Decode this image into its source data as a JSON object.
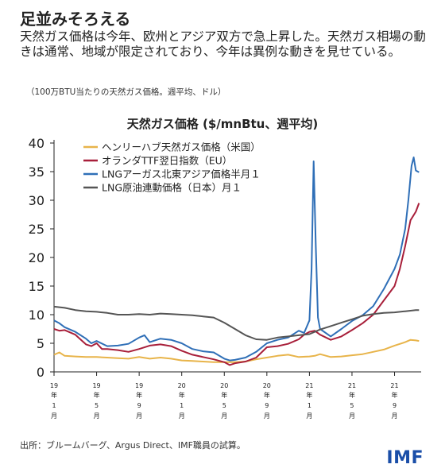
{
  "header": {
    "title": "足並みそろえる",
    "lead": "天然ガス価格は今年、欧州とアジア双方で急上昇した。天然ガス相場の動きは通常、地域が限定されており、今年は異例な動きを見せている。",
    "unit_note": "（100万BTU当たりの天然ガス価格。週平均、ドル）"
  },
  "footer": {
    "source": "出所：ブルームバーグ、Argus Direct、IMF職員の試算。",
    "brand": "IMF"
  },
  "chart_data": {
    "type": "line",
    "title": "天然ガス価格 ($/mnBtu、週平均)",
    "ylim": [
      0,
      40
    ],
    "yticks": [
      0,
      5,
      10,
      15,
      20,
      25,
      30,
      35,
      40
    ],
    "xlim": [
      0,
      34.5
    ],
    "xticks": [
      {
        "x": 0,
        "lines": [
          "19",
          "年",
          "1",
          "月"
        ]
      },
      {
        "x": 4,
        "lines": [
          "19",
          "年",
          "5",
          "月"
        ]
      },
      {
        "x": 8,
        "lines": [
          "19",
          "年",
          "9",
          "月"
        ]
      },
      {
        "x": 12,
        "lines": [
          "20",
          "年",
          "1",
          "月"
        ]
      },
      {
        "x": 16,
        "lines": [
          "20",
          "年",
          "5",
          "月"
        ]
      },
      {
        "x": 20,
        "lines": [
          "20",
          "年",
          "9",
          "月"
        ]
      },
      {
        "x": 24,
        "lines": [
          "21",
          "年",
          "1",
          "月"
        ]
      },
      {
        "x": 28,
        "lines": [
          "21",
          "年",
          "5",
          "月"
        ]
      },
      {
        "x": 32,
        "lines": [
          "21",
          "年",
          "9",
          "月"
        ]
      }
    ],
    "grid": false,
    "legend": "top-left",
    "series": [
      {
        "name": "ヘンリーハブ天然ガス価格（米国）",
        "color": "#e8b44a",
        "points": [
          [
            0,
            3.0
          ],
          [
            0.5,
            3.4
          ],
          [
            1,
            2.8
          ],
          [
            2,
            2.7
          ],
          [
            3,
            2.6
          ],
          [
            4,
            2.6
          ],
          [
            5,
            2.5
          ],
          [
            6,
            2.4
          ],
          [
            7,
            2.3
          ],
          [
            8,
            2.6
          ],
          [
            9,
            2.3
          ],
          [
            10,
            2.5
          ],
          [
            11,
            2.3
          ],
          [
            12,
            2.0
          ],
          [
            13,
            1.9
          ],
          [
            14,
            1.8
          ],
          [
            15,
            1.7
          ],
          [
            16,
            1.7
          ],
          [
            17,
            1.7
          ],
          [
            18,
            1.8
          ],
          [
            19,
            2.2
          ],
          [
            20,
            2.5
          ],
          [
            21,
            2.8
          ],
          [
            22,
            3.0
          ],
          [
            23,
            2.6
          ],
          [
            24,
            2.7
          ],
          [
            24.5,
            2.8
          ],
          [
            25,
            3.1
          ],
          [
            26,
            2.6
          ],
          [
            27,
            2.7
          ],
          [
            28,
            2.9
          ],
          [
            29,
            3.1
          ],
          [
            30,
            3.5
          ],
          [
            31,
            3.9
          ],
          [
            32,
            4.6
          ],
          [
            33,
            5.2
          ],
          [
            33.5,
            5.6
          ],
          [
            34,
            5.5
          ],
          [
            34.3,
            5.4
          ]
        ]
      },
      {
        "name": "オランダTTF翌日指数（EU）",
        "color": "#a81f3a",
        "points": [
          [
            0,
            7.5
          ],
          [
            0.5,
            7.2
          ],
          [
            1,
            7.3
          ],
          [
            2,
            6.5
          ],
          [
            3,
            4.8
          ],
          [
            3.5,
            4.5
          ],
          [
            4,
            5.0
          ],
          [
            4.5,
            4.0
          ],
          [
            5,
            4.0
          ],
          [
            6,
            3.8
          ],
          [
            7,
            3.5
          ],
          [
            8,
            4.0
          ],
          [
            9,
            4.6
          ],
          [
            10,
            4.8
          ],
          [
            11,
            4.5
          ],
          [
            12,
            3.7
          ],
          [
            13,
            3.0
          ],
          [
            14,
            2.6
          ],
          [
            15,
            2.2
          ],
          [
            16,
            1.7
          ],
          [
            16.5,
            1.2
          ],
          [
            17,
            1.5
          ],
          [
            18,
            1.8
          ],
          [
            19,
            2.5
          ],
          [
            20,
            4.3
          ],
          [
            21,
            4.5
          ],
          [
            22,
            4.9
          ],
          [
            23,
            5.7
          ],
          [
            23.5,
            6.5
          ],
          [
            24,
            7.0
          ],
          [
            24.5,
            7.2
          ],
          [
            25,
            6.5
          ],
          [
            26,
            5.6
          ],
          [
            27,
            6.2
          ],
          [
            28,
            7.3
          ],
          [
            29,
            8.5
          ],
          [
            30,
            10.0
          ],
          [
            31,
            12.5
          ],
          [
            32,
            15.0
          ],
          [
            32.5,
            18.0
          ],
          [
            33,
            22.0
          ],
          [
            33.5,
            26.5
          ],
          [
            34,
            28.0
          ],
          [
            34.3,
            29.5
          ]
        ]
      },
      {
        "name": "LNGアーガス北東アジア価格半月１",
        "color": "#2f6fb7",
        "points": [
          [
            0,
            9.0
          ],
          [
            0.5,
            8.5
          ],
          [
            1,
            7.8
          ],
          [
            2,
            7.0
          ],
          [
            3,
            5.8
          ],
          [
            3.5,
            5.0
          ],
          [
            4,
            5.4
          ],
          [
            5,
            4.5
          ],
          [
            6,
            4.6
          ],
          [
            7,
            4.9
          ],
          [
            8,
            6.0
          ],
          [
            8.5,
            6.4
          ],
          [
            9,
            5.2
          ],
          [
            10,
            5.8
          ],
          [
            11,
            5.6
          ],
          [
            12,
            5.0
          ],
          [
            13,
            4.0
          ],
          [
            14,
            3.6
          ],
          [
            15,
            3.4
          ],
          [
            16,
            2.3
          ],
          [
            16.5,
            2.0
          ],
          [
            17,
            2.1
          ],
          [
            18,
            2.5
          ],
          [
            19,
            3.5
          ],
          [
            20,
            5.0
          ],
          [
            21,
            5.6
          ],
          [
            22,
            6.0
          ],
          [
            23,
            7.2
          ],
          [
            23.5,
            6.8
          ],
          [
            24,
            9.0
          ],
          [
            24.2,
            18.0
          ],
          [
            24.4,
            36.8
          ],
          [
            24.6,
            22.0
          ],
          [
            24.8,
            9.5
          ],
          [
            25,
            7.5
          ],
          [
            26,
            6.2
          ],
          [
            27,
            7.5
          ],
          [
            28,
            8.9
          ],
          [
            29,
            9.9
          ],
          [
            30,
            11.5
          ],
          [
            31,
            14.5
          ],
          [
            32,
            18.0
          ],
          [
            32.5,
            20.5
          ],
          [
            33,
            25.0
          ],
          [
            33.3,
            30.0
          ],
          [
            33.6,
            36.0
          ],
          [
            33.8,
            37.5
          ],
          [
            34,
            35.2
          ],
          [
            34.3,
            34.9
          ]
        ]
      },
      {
        "name": "LNG原油連動価格（日本）月１",
        "color": "#555555",
        "points": [
          [
            0,
            11.4
          ],
          [
            1,
            11.2
          ],
          [
            2,
            10.8
          ],
          [
            3,
            10.6
          ],
          [
            4,
            10.5
          ],
          [
            5,
            10.3
          ],
          [
            6,
            10.0
          ],
          [
            7,
            10.0
          ],
          [
            8,
            10.1
          ],
          [
            9,
            10.0
          ],
          [
            10,
            10.2
          ],
          [
            11,
            10.1
          ],
          [
            12,
            10.0
          ],
          [
            13,
            9.9
          ],
          [
            14,
            9.7
          ],
          [
            15,
            9.5
          ],
          [
            16,
            8.6
          ],
          [
            17,
            7.5
          ],
          [
            18,
            6.4
          ],
          [
            19,
            5.7
          ],
          [
            20,
            5.6
          ],
          [
            21,
            6.0
          ],
          [
            22,
            6.2
          ],
          [
            23,
            6.4
          ],
          [
            24,
            6.6
          ],
          [
            25,
            7.4
          ],
          [
            26,
            8.0
          ],
          [
            27,
            8.6
          ],
          [
            28,
            9.2
          ],
          [
            29,
            9.8
          ],
          [
            30,
            10.1
          ],
          [
            31,
            10.3
          ],
          [
            32,
            10.4
          ],
          [
            33,
            10.6
          ],
          [
            34,
            10.8
          ],
          [
            34.3,
            10.8
          ]
        ]
      }
    ]
  }
}
